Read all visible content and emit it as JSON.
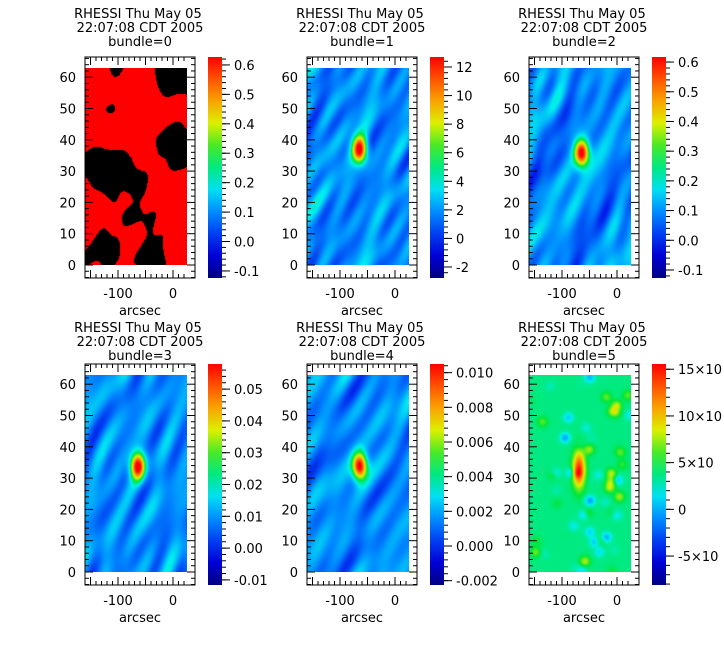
{
  "chart_data": [
    {
      "type": "heatmap",
      "title": "RHESSI Thu May 05 22:07:08 CDT 2005",
      "subtitle": "bundle=0",
      "xlabel": "arcsec",
      "ylabel": "",
      "xticks": [
        -100,
        0
      ],
      "yticks": [
        0,
        10,
        20,
        30,
        40,
        50,
        60
      ],
      "xlim": [
        -178,
        22
      ],
      "ylim": [
        -4,
        66
      ],
      "colorbar": {
        "range": [
          -0.124,
          0.627
        ],
        "ticks": [
          0.6,
          0.5,
          0.4,
          0.3,
          0.2,
          0.1,
          0.0,
          -0.1
        ],
        "tick_labels": [
          "0.6",
          "0.5",
          "0.4",
          "0.3",
          "0.2",
          "0.1",
          "0.0",
          "-0.1"
        ]
      },
      "style": "red-black"
    },
    {
      "type": "heatmap",
      "title": "RHESSI Thu May 05 22:07:08 CDT 2005",
      "subtitle": "bundle=1",
      "xlabel": "arcsec",
      "ylabel": "",
      "xticks": [
        -100,
        0
      ],
      "yticks": [
        0,
        10,
        20,
        30,
        40,
        50,
        60
      ],
      "xlim": [
        -178,
        22
      ],
      "ylim": [
        -4,
        66
      ],
      "colorbar": {
        "range": [
          -2.77,
          12.7
        ],
        "ticks": [
          12,
          10,
          8,
          6,
          4,
          2,
          0,
          -2
        ],
        "tick_labels": [
          "12",
          "10",
          "8",
          "6",
          "4",
          "2",
          "0",
          "-2"
        ]
      },
      "peak": {
        "x": -65,
        "y": 37
      }
    },
    {
      "type": "heatmap",
      "title": "RHESSI Thu May 05 22:07:08 CDT 2005",
      "subtitle": "bundle=2",
      "xlabel": "arcsec",
      "ylabel": "",
      "xticks": [
        -100,
        0
      ],
      "yticks": [
        0,
        10,
        20,
        30,
        40,
        50,
        60
      ],
      "xlim": [
        -178,
        22
      ],
      "ylim": [
        -4,
        66
      ],
      "colorbar": {
        "range": [
          -0.127,
          0.617
        ],
        "ticks": [
          0.6,
          0.5,
          0.4,
          0.3,
          0.2,
          0.1,
          0.0,
          -0.1
        ],
        "tick_labels": [
          "0.6",
          "0.5",
          "0.4",
          "0.3",
          "0.2",
          "0.1",
          "0.0",
          "-0.1"
        ]
      },
      "peak": {
        "x": -65,
        "y": 36
      }
    },
    {
      "type": "heatmap",
      "title": "RHESSI Thu May 05 22:07:08 CDT 2005",
      "subtitle": "bundle=3",
      "xlabel": "arcsec",
      "ylabel": "",
      "xticks": [
        -100,
        0
      ],
      "yticks": [
        0,
        10,
        20,
        30,
        40,
        50,
        60
      ],
      "xlim": [
        -178,
        22
      ],
      "ylim": [
        -4,
        66
      ],
      "colorbar": {
        "range": [
          -0.0116,
          0.0579
        ],
        "ticks": [
          0.05,
          0.04,
          0.03,
          0.02,
          0.01,
          0.0,
          -0.01
        ],
        "tick_labels": [
          "0.05",
          "0.04",
          "0.03",
          "0.02",
          "0.01",
          "0.00",
          "-0.01"
        ]
      },
      "peak": {
        "x": -65,
        "y": 34
      }
    },
    {
      "type": "heatmap",
      "title": "RHESSI Thu May 05 22:07:08 CDT 2005",
      "subtitle": "bundle=4",
      "xlabel": "arcsec",
      "ylabel": "",
      "xticks": [
        -100,
        0
      ],
      "yticks": [
        0,
        10,
        20,
        30,
        40,
        50,
        60
      ],
      "xlim": [
        -178,
        22
      ],
      "ylim": [
        -4,
        66
      ],
      "colorbar": {
        "range": [
          -0.00225,
          0.0105
        ],
        "ticks": [
          0.01,
          0.008,
          0.006,
          0.004,
          0.002,
          0.0,
          -0.002
        ],
        "tick_labels": [
          "0.010",
          "0.008",
          "0.006",
          "0.004",
          "0.002",
          "0.000",
          "-0.002"
        ]
      },
      "peak": {
        "x": -65,
        "y": 34
      }
    },
    {
      "type": "heatmap",
      "title": "RHESSI Thu May 05 22:07:08 CDT 2005",
      "subtitle": "bundle=5",
      "xlabel": "arcsec",
      "ylabel": "",
      "xticks": [
        -100,
        0
      ],
      "yticks": [
        0,
        10,
        20,
        30,
        40,
        50,
        60
      ],
      "xlim": [
        -178,
        22
      ],
      "ylim": [
        -4,
        66
      ],
      "colorbar": {
        "range": [
          -8.1,
          15.56
        ],
        "ticks": [
          15,
          10,
          5,
          0,
          -5
        ],
        "tick_labels": [
          "15×10",
          "10×10",
          "5×10",
          "0",
          "-5×10"
        ]
      },
      "peak": {
        "x": -70,
        "y": 33
      },
      "style": "noisy"
    }
  ]
}
